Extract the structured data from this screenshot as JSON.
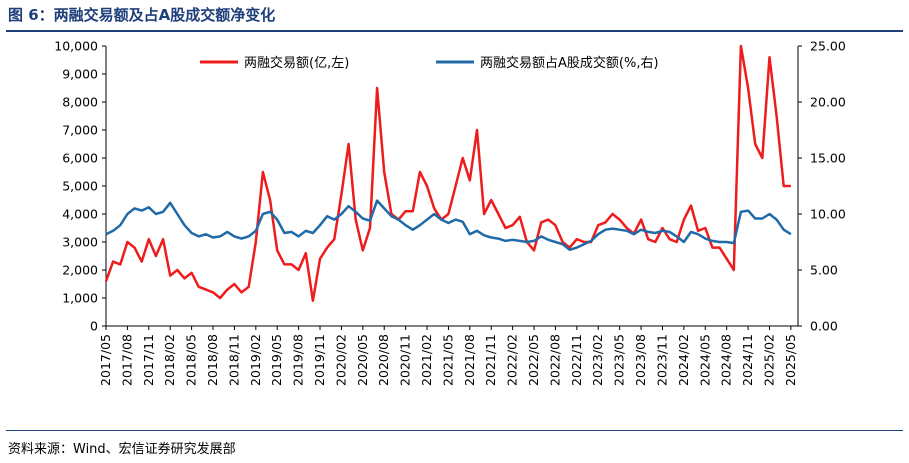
{
  "title": "图 6：两融交易额及占A股成交额净变化",
  "source": "资料来源：Wind、宏信证券研究发展部",
  "chart_data": {
    "type": "line",
    "title": "",
    "legend": {
      "placement": "top",
      "entries": [
        "两融交易额(亿,左)",
        "两融交易额占A股成交额(%,右)"
      ]
    },
    "colors": {
      "left_series": "#ee1c1c",
      "right_series": "#1f6aa8"
    },
    "grid": false,
    "x_axis": {
      "ticks": [
        "2017/05",
        "2017/08",
        "2017/11",
        "2018/02",
        "2018/05",
        "2018/08",
        "2018/11",
        "2019/02",
        "2019/05",
        "2019/08",
        "2019/11",
        "2020/02",
        "2020/05",
        "2020/08",
        "2020/11",
        "2021/02",
        "2021/05",
        "2021/08",
        "2021/11",
        "2022/02",
        "2022/05",
        "2022/08",
        "2022/11",
        "2023/02",
        "2023/05",
        "2023/08",
        "2023/11",
        "2024/02",
        "2024/05",
        "2024/08",
        "2024/11",
        "2025/02",
        "2025/05"
      ],
      "range": [
        "2017/05",
        "2025/06"
      ]
    },
    "y_left": {
      "range": [
        0,
        10000
      ],
      "ticks": [
        "0",
        "1,000",
        "2,000",
        "3,000",
        "4,000",
        "5,000",
        "6,000",
        "7,000",
        "8,000",
        "9,000",
        "10,000"
      ]
    },
    "y_right": {
      "range": [
        0,
        25
      ],
      "ticks": [
        "0.00",
        "5.00",
        "10.00",
        "15.00",
        "20.00",
        "25.00"
      ]
    },
    "series": [
      {
        "name": "两融交易额(亿,左)",
        "axis": "left",
        "points": [
          [
            "2017/05",
            1600
          ],
          [
            "2017/06",
            2300
          ],
          [
            "2017/07",
            2200
          ],
          [
            "2017/08",
            3000
          ],
          [
            "2017/09",
            2800
          ],
          [
            "2017/10",
            2300
          ],
          [
            "2017/11",
            3100
          ],
          [
            "2017/12",
            2500
          ],
          [
            "2018/01",
            3100
          ],
          [
            "2018/02",
            1800
          ],
          [
            "2018/03",
            2000
          ],
          [
            "2018/04",
            1700
          ],
          [
            "2018/05",
            1900
          ],
          [
            "2018/06",
            1400
          ],
          [
            "2018/07",
            1300
          ],
          [
            "2018/08",
            1200
          ],
          [
            "2018/09",
            1000
          ],
          [
            "2018/10",
            1300
          ],
          [
            "2018/11",
            1500
          ],
          [
            "2018/12",
            1200
          ],
          [
            "2019/01",
            1400
          ],
          [
            "2019/02",
            3000
          ],
          [
            "2019/03",
            5500
          ],
          [
            "2019/04",
            4500
          ],
          [
            "2019/05",
            2700
          ],
          [
            "2019/06",
            2200
          ],
          [
            "2019/07",
            2200
          ],
          [
            "2019/08",
            2000
          ],
          [
            "2019/09",
            2600
          ],
          [
            "2019/10",
            900
          ],
          [
            "2019/11",
            2400
          ],
          [
            "2019/12",
            2800
          ],
          [
            "2020/01",
            3100
          ],
          [
            "2020/02",
            4700
          ],
          [
            "2020/03",
            6500
          ],
          [
            "2020/04",
            3800
          ],
          [
            "2020/05",
            2700
          ],
          [
            "2020/06",
            3500
          ],
          [
            "2020/07",
            8500
          ],
          [
            "2020/08",
            5500
          ],
          [
            "2020/09",
            4000
          ],
          [
            "2020/10",
            3800
          ],
          [
            "2020/11",
            4100
          ],
          [
            "2020/12",
            4100
          ],
          [
            "2021/01",
            5500
          ],
          [
            "2021/02",
            5000
          ],
          [
            "2021/03",
            4200
          ],
          [
            "2021/04",
            3800
          ],
          [
            "2021/05",
            4000
          ],
          [
            "2021/06",
            5000
          ],
          [
            "2021/07",
            6000
          ],
          [
            "2021/08",
            5200
          ],
          [
            "2021/09",
            7000
          ],
          [
            "2021/10",
            4000
          ],
          [
            "2021/11",
            4500
          ],
          [
            "2021/12",
            4000
          ],
          [
            "2022/01",
            3500
          ],
          [
            "2022/02",
            3600
          ],
          [
            "2022/03",
            3900
          ],
          [
            "2022/04",
            3000
          ],
          [
            "2022/05",
            2700
          ],
          [
            "2022/06",
            3700
          ],
          [
            "2022/07",
            3800
          ],
          [
            "2022/08",
            3600
          ],
          [
            "2022/09",
            3000
          ],
          [
            "2022/10",
            2800
          ],
          [
            "2022/11",
            3100
          ],
          [
            "2022/12",
            3000
          ],
          [
            "2023/01",
            3000
          ],
          [
            "2023/02",
            3600
          ],
          [
            "2023/03",
            3700
          ],
          [
            "2023/04",
            4000
          ],
          [
            "2023/05",
            3800
          ],
          [
            "2023/06",
            3500
          ],
          [
            "2023/07",
            3300
          ],
          [
            "2023/08",
            3800
          ],
          [
            "2023/09",
            3100
          ],
          [
            "2023/10",
            3000
          ],
          [
            "2023/11",
            3500
          ],
          [
            "2023/12",
            3100
          ],
          [
            "2024/01",
            3000
          ],
          [
            "2024/02",
            3800
          ],
          [
            "2024/03",
            4300
          ],
          [
            "2024/04",
            3400
          ],
          [
            "2024/05",
            3500
          ],
          [
            "2024/06",
            2800
          ],
          [
            "2024/07",
            2800
          ],
          [
            "2024/08",
            2400
          ],
          [
            "2024/09",
            2000
          ],
          [
            "2024/10",
            10000
          ],
          [
            "2024/11",
            8500
          ],
          [
            "2024/12",
            6500
          ],
          [
            "2025/01",
            6000
          ],
          [
            "2025/02",
            9600
          ],
          [
            "2025/03",
            7500
          ],
          [
            "2025/04",
            5000
          ],
          [
            "2025/05",
            5000
          ]
        ]
      },
      {
        "name": "两融交易额占A股成交额(%,右)",
        "axis": "right",
        "points": [
          [
            "2017/05",
            8.2
          ],
          [
            "2017/06",
            8.5
          ],
          [
            "2017/07",
            9.0
          ],
          [
            "2017/08",
            10.0
          ],
          [
            "2017/09",
            10.5
          ],
          [
            "2017/10",
            10.3
          ],
          [
            "2017/11",
            10.6
          ],
          [
            "2017/12",
            10.0
          ],
          [
            "2018/01",
            10.2
          ],
          [
            "2018/02",
            11.0
          ],
          [
            "2018/03",
            10.0
          ],
          [
            "2018/04",
            9.0
          ],
          [
            "2018/05",
            8.3
          ],
          [
            "2018/06",
            8.0
          ],
          [
            "2018/07",
            8.2
          ],
          [
            "2018/08",
            7.9
          ],
          [
            "2018/09",
            8.0
          ],
          [
            "2018/10",
            8.4
          ],
          [
            "2018/11",
            8.0
          ],
          [
            "2018/12",
            7.8
          ],
          [
            "2019/01",
            8.0
          ],
          [
            "2019/02",
            8.5
          ],
          [
            "2019/03",
            10.0
          ],
          [
            "2019/04",
            10.2
          ],
          [
            "2019/05",
            9.5
          ],
          [
            "2019/06",
            8.3
          ],
          [
            "2019/07",
            8.4
          ],
          [
            "2019/08",
            8.0
          ],
          [
            "2019/09",
            8.5
          ],
          [
            "2019/10",
            8.3
          ],
          [
            "2019/11",
            9.0
          ],
          [
            "2019/12",
            9.8
          ],
          [
            "2020/01",
            9.5
          ],
          [
            "2020/02",
            10.0
          ],
          [
            "2020/03",
            10.7
          ],
          [
            "2020/04",
            10.2
          ],
          [
            "2020/05",
            9.6
          ],
          [
            "2020/06",
            9.4
          ],
          [
            "2020/07",
            11.2
          ],
          [
            "2020/08",
            10.5
          ],
          [
            "2020/09",
            9.8
          ],
          [
            "2020/10",
            9.5
          ],
          [
            "2020/11",
            9.0
          ],
          [
            "2020/12",
            8.6
          ],
          [
            "2021/01",
            9.0
          ],
          [
            "2021/02",
            9.5
          ],
          [
            "2021/03",
            10.0
          ],
          [
            "2021/04",
            9.5
          ],
          [
            "2021/05",
            9.2
          ],
          [
            "2021/06",
            9.5
          ],
          [
            "2021/07",
            9.3
          ],
          [
            "2021/08",
            8.2
          ],
          [
            "2021/09",
            8.5
          ],
          [
            "2021/10",
            8.1
          ],
          [
            "2021/11",
            7.9
          ],
          [
            "2021/12",
            7.8
          ],
          [
            "2022/01",
            7.6
          ],
          [
            "2022/02",
            7.7
          ],
          [
            "2022/03",
            7.6
          ],
          [
            "2022/04",
            7.5
          ],
          [
            "2022/05",
            7.6
          ],
          [
            "2022/06",
            8.0
          ],
          [
            "2022/07",
            7.7
          ],
          [
            "2022/08",
            7.5
          ],
          [
            "2022/09",
            7.3
          ],
          [
            "2022/10",
            6.8
          ],
          [
            "2022/11",
            7.0
          ],
          [
            "2022/12",
            7.3
          ],
          [
            "2023/01",
            7.6
          ],
          [
            "2023/02",
            8.2
          ],
          [
            "2023/03",
            8.6
          ],
          [
            "2023/04",
            8.7
          ],
          [
            "2023/05",
            8.6
          ],
          [
            "2023/06",
            8.5
          ],
          [
            "2023/07",
            8.2
          ],
          [
            "2023/08",
            8.6
          ],
          [
            "2023/09",
            8.4
          ],
          [
            "2023/10",
            8.3
          ],
          [
            "2023/11",
            8.5
          ],
          [
            "2023/12",
            8.4
          ],
          [
            "2024/01",
            8.0
          ],
          [
            "2024/02",
            7.5
          ],
          [
            "2024/03",
            8.4
          ],
          [
            "2024/04",
            8.2
          ],
          [
            "2024/05",
            7.8
          ],
          [
            "2024/06",
            7.6
          ],
          [
            "2024/07",
            7.5
          ],
          [
            "2024/08",
            7.5
          ],
          [
            "2024/09",
            7.4
          ],
          [
            "2024/10",
            10.2
          ],
          [
            "2024/11",
            10.3
          ],
          [
            "2024/12",
            9.6
          ],
          [
            "2025/01",
            9.6
          ],
          [
            "2025/02",
            10.0
          ],
          [
            "2025/03",
            9.5
          ],
          [
            "2025/04",
            8.6
          ],
          [
            "2025/05",
            8.2
          ]
        ]
      }
    ]
  }
}
